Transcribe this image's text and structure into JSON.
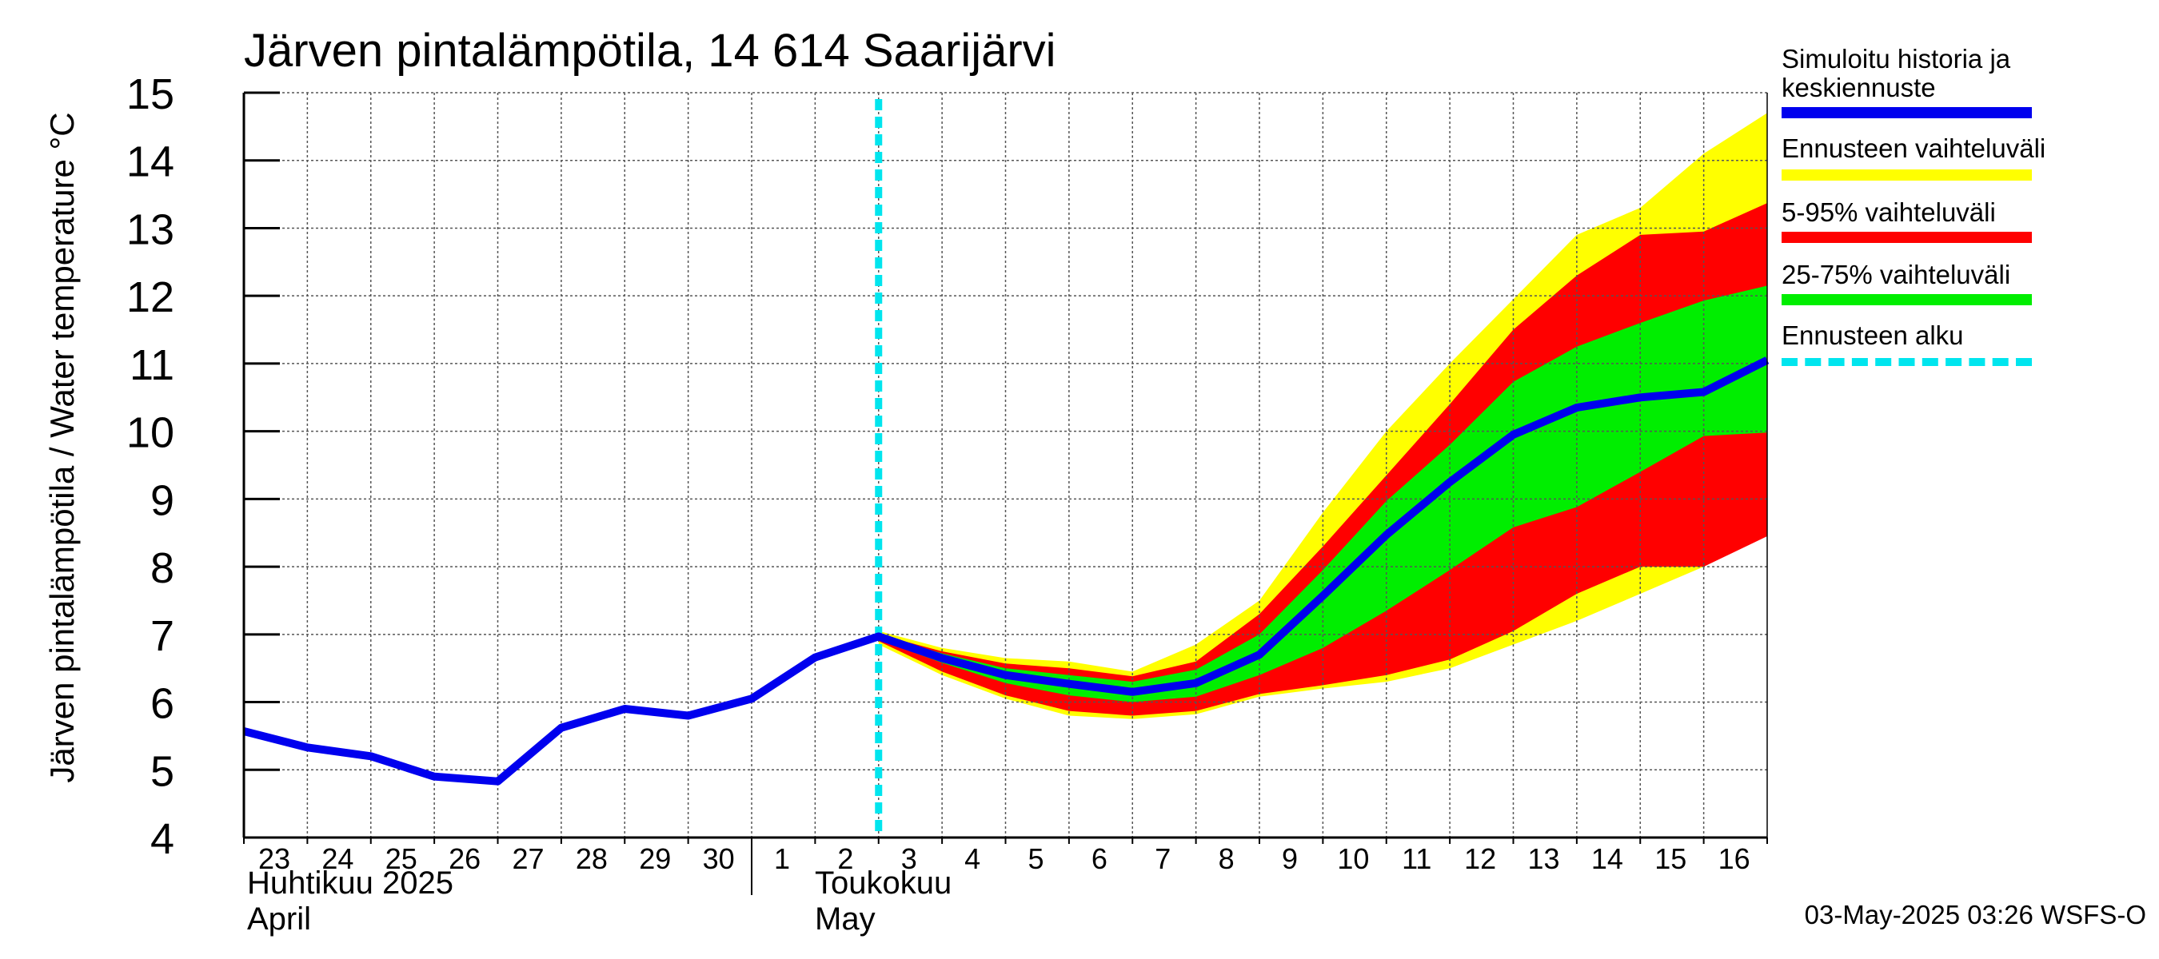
{
  "title": "Järven pintalämpötila, 14 614 Saarijärvi",
  "ylabel": "Järven pintalämpötila / Water temperature °C",
  "months": [
    {
      "fi": "Huhtikuu  2025",
      "en": "April"
    },
    {
      "fi": "Toukokuu",
      "en": "May"
    }
  ],
  "timestamp": "03-May-2025 03:26 WSFS-O",
  "legend": [
    {
      "label": "Simuloitu historia ja keskiennuste",
      "color": "#0000ee"
    },
    {
      "label": "Ennusteen vaihteluväli",
      "color": "#ffff00"
    },
    {
      "label": "5-95% vaihteluväli",
      "color": "#ff0000"
    },
    {
      "label": "25-75% vaihteluväli",
      "color": "#00ee00"
    },
    {
      "label": "Ennusteen alku",
      "color": "#00e5ee"
    }
  ],
  "chart_data": {
    "type": "line",
    "title": "Järven pintalämpötila, 14 614 Saarijärvi",
    "ylabel": "Järven pintalämpötila / Water temperature °C",
    "ylim": [
      4,
      15
    ],
    "yticks": [
      4,
      5,
      6,
      7,
      8,
      9,
      10,
      11,
      12,
      13,
      14,
      15
    ],
    "x_start": "2025-04-23",
    "x_end": "2025-05-16T24:00",
    "xtick_labels": [
      "23",
      "24",
      "25",
      "26",
      "27",
      "28",
      "29",
      "30",
      "1",
      "2",
      "3",
      "4",
      "5",
      "6",
      "7",
      "8",
      "9",
      "10",
      "11",
      "12",
      "13",
      "14",
      "15",
      "16"
    ],
    "forecast_start": "2025-05-03",
    "grid": true,
    "legend_position": "right",
    "x": [
      "2025-04-23",
      "2025-04-24",
      "2025-04-25",
      "2025-04-26",
      "2025-04-27",
      "2025-04-28",
      "2025-04-29",
      "2025-04-30",
      "2025-05-01",
      "2025-05-02",
      "2025-05-03",
      "2025-05-04",
      "2025-05-05",
      "2025-05-06",
      "2025-05-07",
      "2025-05-08",
      "2025-05-09",
      "2025-05-10",
      "2025-05-11",
      "2025-05-12",
      "2025-05-13",
      "2025-05-14",
      "2025-05-15",
      "2025-05-16",
      "2025-05-17"
    ],
    "series": [
      {
        "name": "Simuloitu historia ja keskiennuste",
        "color": "#0000ee",
        "values": [
          5.57,
          5.33,
          5.2,
          4.9,
          4.83,
          5.62,
          5.9,
          5.8,
          6.05,
          6.66,
          6.97,
          6.65,
          6.4,
          6.27,
          6.15,
          6.28,
          6.7,
          7.57,
          8.47,
          9.25,
          9.95,
          10.35,
          10.5,
          10.58,
          11.05
        ]
      }
    ],
    "bands": [
      {
        "name": "Ennusteen vaihteluväli",
        "color": "#ffff00",
        "start": "2025-05-03",
        "low": [
          6.85,
          6.4,
          6.05,
          5.8,
          5.75,
          5.82,
          6.08,
          6.2,
          6.3,
          6.5,
          6.85,
          7.2,
          7.6,
          8.0,
          8.5
        ],
        "high": [
          7.05,
          6.8,
          6.65,
          6.6,
          6.45,
          6.85,
          7.5,
          8.8,
          10.0,
          11.0,
          11.95,
          12.9,
          13.3,
          14.1,
          14.7
        ]
      },
      {
        "name": "5-95% vaihteluväli",
        "color": "#ff0000",
        "start": "2025-05-03",
        "low": [
          6.9,
          6.45,
          6.1,
          5.87,
          5.8,
          5.87,
          6.12,
          6.25,
          6.4,
          6.63,
          7.05,
          7.6,
          8.0,
          8.0,
          8.45
        ],
        "high": [
          7.0,
          6.75,
          6.57,
          6.5,
          6.38,
          6.6,
          7.3,
          8.3,
          9.35,
          10.4,
          11.5,
          12.3,
          12.9,
          12.95,
          13.37
        ]
      },
      {
        "name": "25-75% vaihteluväli",
        "color": "#00ee00",
        "start": "2025-05-03",
        "low": [
          6.92,
          6.58,
          6.28,
          6.1,
          6.0,
          6.08,
          6.4,
          6.8,
          7.35,
          7.95,
          8.58,
          8.88,
          9.4,
          9.93,
          9.98
        ]
      },
      {
        "name": "25-75% upper",
        "color": "#00ee00",
        "start": "2025-05-03",
        "high": [
          6.99,
          6.72,
          6.5,
          6.4,
          6.3,
          6.48,
          7.0,
          7.95,
          8.97,
          9.8,
          10.73,
          11.25,
          11.6,
          11.93,
          12.15
        ]
      }
    ]
  }
}
